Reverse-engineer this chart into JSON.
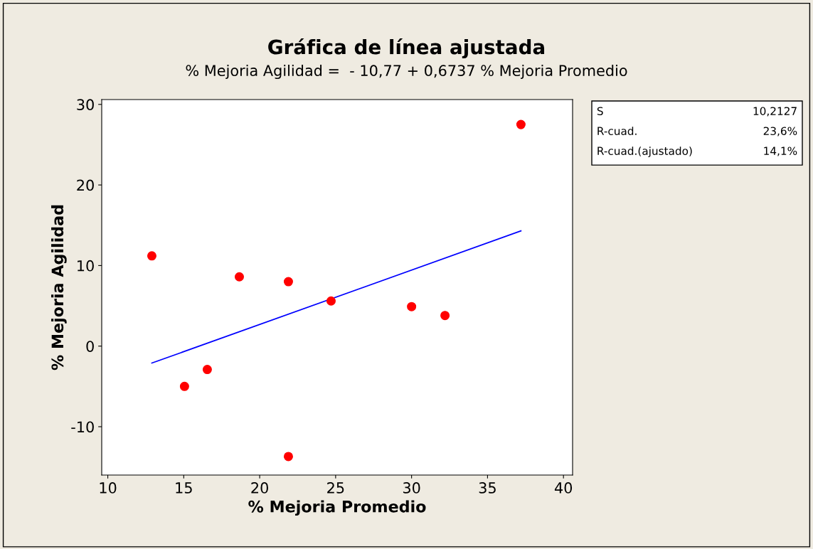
{
  "chart_data": {
    "type": "scatter",
    "title": "Gráfica de línea ajustada",
    "subtitle": "% Mejoria Agilidad =  - 10,77 + 0,6737 % Mejoria Promedio",
    "xlabel": "% Mejoria Promedio",
    "ylabel": "% Mejoria Agilidad",
    "series": [
      {
        "color": "#ff0000",
        "marker": "circle",
        "x": [
          12.9,
          15.05,
          16.55,
          18.66,
          21.89,
          21.89,
          24.7,
          30.0,
          32.2,
          37.2
        ],
        "values": [
          11.2,
          -5.0,
          -2.9,
          8.6,
          8.0,
          -13.7,
          5.6,
          4.9,
          3.8,
          27.5
        ]
      },
      {
        "type": "line",
        "color": "#0000ff",
        "marker": "none",
        "line_style": "solid",
        "x": [
          12.9,
          37.2
        ],
        "values": [
          -2.1,
          14.3
        ]
      }
    ],
    "xlim": [
      9.6,
      40.6
    ],
    "ylim": [
      -16,
      30.6
    ],
    "xticks": [
      10,
      15,
      20,
      25,
      30,
      35,
      40
    ],
    "yticks": [
      -10,
      0,
      10,
      20,
      30
    ],
    "grid": false,
    "legend": false,
    "annotations": [
      "S",
      "10,2127",
      "R-cuad.",
      "23,6%",
      "R-cuad.(ajustado)",
      "14,1%"
    ]
  }
}
